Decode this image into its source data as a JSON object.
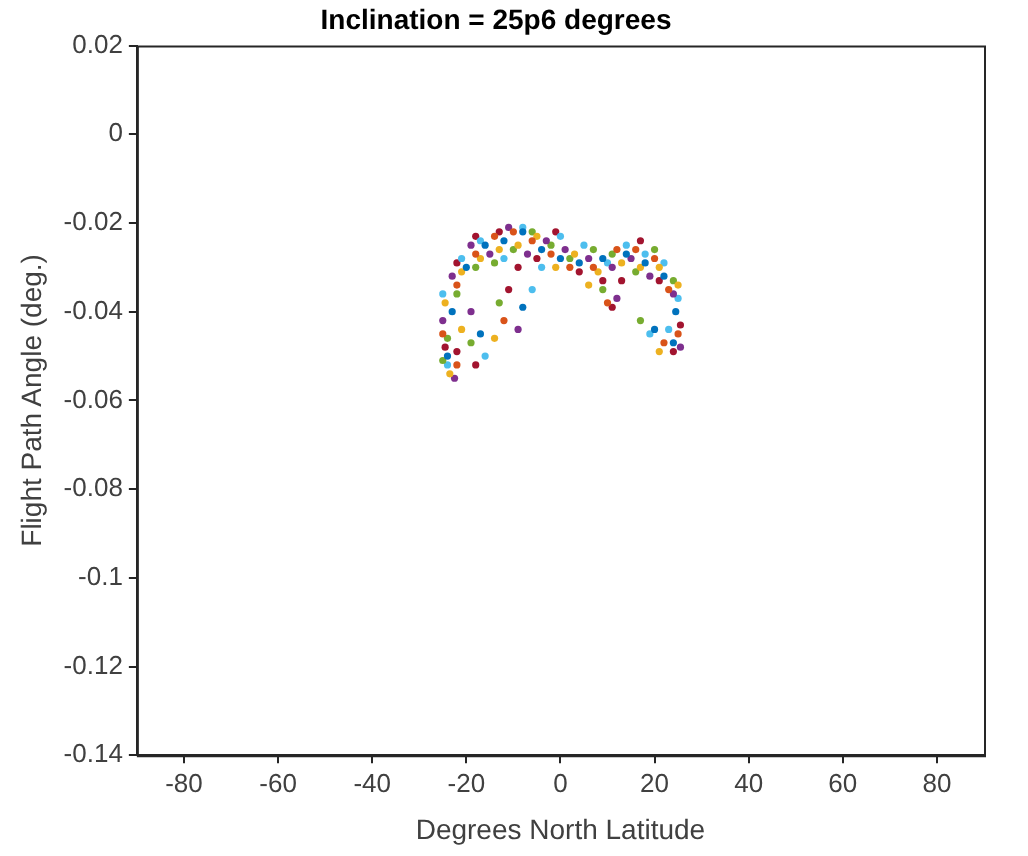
{
  "chart_data": {
    "type": "scatter",
    "title": "Inclination = 25p6 degrees",
    "xlabel": "Degrees North Latitude",
    "ylabel": "Flight Path Angle (deg.)",
    "xlim": [
      -90,
      90
    ],
    "xticks": [
      -80,
      -60,
      -40,
      -20,
      0,
      20,
      40,
      60,
      80
    ],
    "ylim": [
      -0.14,
      0.02
    ],
    "yticks": [
      0.02,
      0,
      -0.02,
      -0.04,
      -0.06,
      -0.08,
      -0.1,
      -0.12,
      -0.14
    ],
    "grid": false,
    "legend": false,
    "marker": "circle",
    "series": [
      {
        "color": "#0072bd",
        "x": [
          -24,
          -23,
          -20,
          -16,
          -12,
          -8,
          -4,
          0,
          4,
          9,
          14,
          18,
          22,
          24.5,
          -17,
          -8,
          20,
          24
        ],
        "values": [
          -0.05,
          -0.04,
          -0.03,
          -0.025,
          -0.024,
          -0.022,
          -0.026,
          -0.028,
          -0.029,
          -0.028,
          -0.027,
          -0.029,
          -0.032,
          -0.04,
          -0.045,
          -0.039,
          -0.044,
          -0.047
        ]
      },
      {
        "color": "#d95319",
        "x": [
          -25,
          -22,
          -18,
          -14,
          -10,
          -6,
          -2,
          2,
          7,
          12,
          16,
          20,
          23,
          25,
          -22,
          -12,
          10,
          22
        ],
        "values": [
          -0.045,
          -0.034,
          -0.027,
          -0.023,
          -0.022,
          -0.024,
          -0.027,
          -0.03,
          -0.03,
          -0.026,
          -0.026,
          -0.028,
          -0.035,
          -0.045,
          -0.052,
          -0.042,
          -0.038,
          -0.047
        ]
      },
      {
        "color": "#edb120",
        "x": [
          -23.5,
          -24.5,
          -21,
          -17,
          -13,
          -9,
          -5,
          -1,
          3,
          8,
          13,
          17,
          21,
          25,
          -21,
          -14,
          6,
          21
        ],
        "values": [
          -0.054,
          -0.038,
          -0.031,
          -0.028,
          -0.026,
          -0.025,
          -0.023,
          -0.03,
          -0.027,
          -0.031,
          -0.029,
          -0.03,
          -0.03,
          -0.034,
          -0.044,
          -0.046,
          -0.034,
          -0.049
        ]
      },
      {
        "color": "#7e2f8e",
        "x": [
          -22.5,
          -25,
          -23,
          -19,
          -15,
          -11,
          -7,
          -3,
          1,
          6,
          11,
          15,
          19,
          24,
          -19,
          -9,
          12,
          25.5
        ],
        "values": [
          -0.055,
          -0.042,
          -0.032,
          -0.025,
          -0.027,
          -0.021,
          -0.027,
          -0.024,
          -0.026,
          -0.028,
          -0.03,
          -0.028,
          -0.032,
          -0.036,
          -0.04,
          -0.044,
          -0.037,
          -0.048
        ]
      },
      {
        "color": "#77ac30",
        "x": [
          -25,
          -24,
          -22,
          -18,
          -14,
          -10,
          -6,
          -2,
          2,
          7,
          11,
          16,
          20,
          24,
          -19,
          -13,
          9,
          17
        ],
        "values": [
          -0.051,
          -0.046,
          -0.036,
          -0.03,
          -0.029,
          -0.026,
          -0.022,
          -0.025,
          -0.028,
          -0.026,
          -0.027,
          -0.031,
          -0.026,
          -0.033,
          -0.047,
          -0.038,
          -0.035,
          -0.042
        ]
      },
      {
        "color": "#4dbeee",
        "x": [
          -24,
          -25,
          -21,
          -17,
          -12,
          -8,
          -4,
          0,
          5,
          10,
          14,
          18,
          22,
          25,
          -16,
          -6,
          19,
          23
        ],
        "values": [
          -0.052,
          -0.036,
          -0.028,
          -0.024,
          -0.028,
          -0.021,
          -0.03,
          -0.023,
          -0.025,
          -0.029,
          -0.025,
          -0.027,
          -0.029,
          -0.037,
          -0.05,
          -0.035,
          -0.045,
          -0.044
        ]
      },
      {
        "color": "#a2142f",
        "x": [
          -22,
          -24.5,
          -22,
          -18,
          -13,
          -9,
          -5,
          -1,
          4,
          9,
          13,
          17,
          21,
          25.5,
          -18,
          -11,
          11,
          24
        ],
        "values": [
          -0.049,
          -0.048,
          -0.029,
          -0.023,
          -0.022,
          -0.03,
          -0.028,
          -0.022,
          -0.031,
          -0.033,
          -0.033,
          -0.024,
          -0.033,
          -0.043,
          -0.052,
          -0.035,
          -0.039,
          -0.049
        ]
      }
    ]
  }
}
